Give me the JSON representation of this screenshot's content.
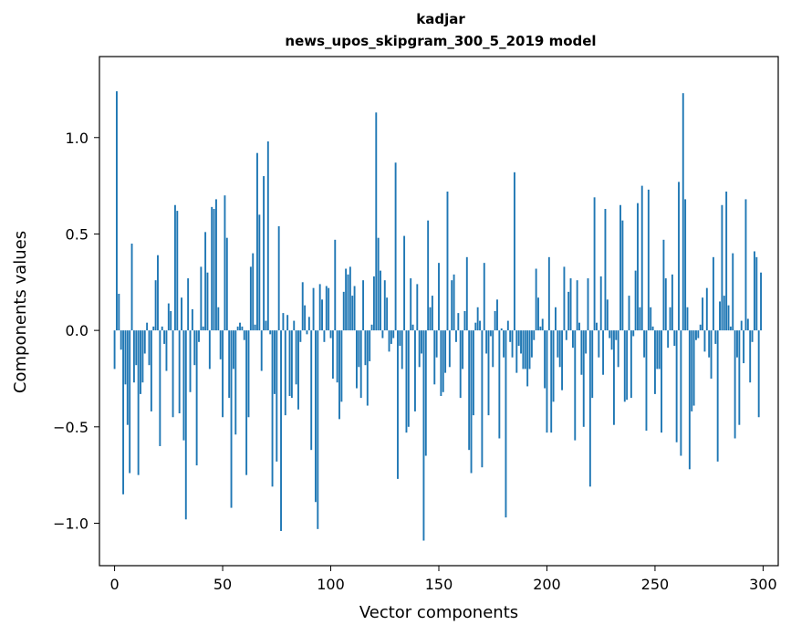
{
  "chart_data": {
    "type": "bar",
    "title": "kadjar",
    "subtitle": "news_upos_skipgram_300_5_2019 model",
    "xlabel": "Vector components",
    "ylabel": "Components values",
    "xlim": [
      -7,
      307
    ],
    "ylim": [
      -1.22,
      1.42
    ],
    "xticks": [
      0,
      50,
      100,
      150,
      200,
      250,
      300
    ],
    "xtick_labels": [
      "0",
      "50",
      "100",
      "150",
      "200",
      "250",
      "300"
    ],
    "yticks": [
      -1.0,
      -0.5,
      0.0,
      0.5,
      1.0
    ],
    "ytick_labels": [
      "−1.0",
      "−0.5",
      "0.0",
      "0.5",
      "1.0"
    ],
    "grid": false,
    "bar_color": "#1f77b4",
    "x_start": 0,
    "values": [
      -0.2,
      1.24,
      0.19,
      -0.1,
      -0.85,
      -0.28,
      -0.49,
      -0.74,
      0.45,
      -0.27,
      -0.18,
      -0.75,
      -0.33,
      -0.27,
      -0.12,
      0.04,
      -0.18,
      -0.42,
      0.02,
      0.26,
      0.39,
      -0.6,
      0.02,
      -0.07,
      -0.21,
      0.14,
      0.1,
      -0.45,
      0.65,
      0.62,
      -0.43,
      0.17,
      -0.57,
      -0.98,
      0.27,
      -0.32,
      0.11,
      -0.18,
      -0.7,
      -0.06,
      0.33,
      0.02,
      0.51,
      0.3,
      -0.2,
      0.64,
      0.63,
      0.68,
      0.12,
      -0.15,
      -0.45,
      0.7,
      0.48,
      -0.35,
      -0.92,
      -0.2,
      -0.54,
      0.02,
      0.04,
      0.02,
      -0.05,
      -0.75,
      -0.45,
      0.33,
      0.4,
      0.03,
      0.92,
      0.6,
      -0.21,
      0.8,
      0.05,
      0.98,
      -0.02,
      -0.81,
      -0.33,
      -0.68,
      0.54,
      -1.04,
      0.09,
      -0.44,
      0.08,
      -0.34,
      -0.35,
      0.05,
      -0.28,
      -0.41,
      -0.06,
      0.25,
      0.13,
      -0.02,
      0.07,
      -0.62,
      0.22,
      -0.89,
      -1.03,
      0.24,
      0.16,
      -0.06,
      0.23,
      0.22,
      -0.04,
      -0.25,
      0.47,
      -0.27,
      -0.46,
      -0.37,
      0.2,
      0.32,
      0.29,
      0.33,
      0.18,
      0.23,
      -0.3,
      -0.19,
      -0.35,
      0.26,
      -0.18,
      -0.39,
      -0.16,
      0.03,
      0.28,
      1.13,
      0.48,
      0.31,
      -0.04,
      0.26,
      0.17,
      -0.11,
      -0.07,
      -0.04,
      0.87,
      -0.77,
      -0.08,
      -0.2,
      0.49,
      -0.53,
      -0.5,
      0.27,
      0.03,
      -0.42,
      0.24,
      -0.19,
      -0.12,
      -1.09,
      -0.65,
      0.57,
      0.12,
      0.18,
      -0.28,
      -0.14,
      0.35,
      -0.34,
      -0.32,
      -0.22,
      0.72,
      -0.19,
      0.26,
      0.29,
      -0.06,
      0.09,
      -0.35,
      -0.2,
      0.1,
      0.38,
      -0.62,
      -0.74,
      -0.44,
      0.04,
      0.12,
      0.05,
      -0.71,
      0.35,
      -0.12,
      -0.44,
      -0.03,
      -0.19,
      0.1,
      0.16,
      -0.56,
      0.01,
      -0.14,
      -0.97,
      0.05,
      -0.06,
      -0.14,
      0.82,
      -0.22,
      -0.08,
      -0.12,
      -0.2,
      -0.2,
      -0.29,
      -0.2,
      -0.14,
      -0.05,
      0.32,
      0.17,
      0.02,
      0.06,
      -0.3,
      -0.53,
      0.38,
      -0.53,
      -0.37,
      0.12,
      -0.14,
      -0.19,
      -0.31,
      0.33,
      -0.05,
      0.2,
      0.27,
      -0.09,
      -0.57,
      0.26,
      0.04,
      -0.23,
      -0.5,
      -0.12,
      0.27,
      -0.81,
      -0.35,
      0.69,
      0.04,
      -0.14,
      0.28,
      -0.23,
      0.63,
      0.16,
      -0.04,
      -0.1,
      -0.49,
      -0.05,
      -0.19,
      0.65,
      0.57,
      -0.37,
      -0.36,
      0.18,
      -0.35,
      -0.03,
      0.31,
      0.66,
      0.12,
      0.75,
      -0.14,
      -0.52,
      0.73,
      0.12,
      0.02,
      -0.33,
      -0.2,
      -0.2,
      -0.53,
      0.47,
      0.27,
      -0.09,
      0.12,
      0.29,
      -0.08,
      -0.58,
      0.77,
      -0.65,
      1.23,
      0.68,
      0.12,
      -0.72,
      -0.42,
      -0.39,
      -0.05,
      -0.04,
      0.03,
      0.17,
      -0.11,
      0.22,
      -0.14,
      -0.25,
      0.38,
      -0.07,
      -0.68,
      0.15,
      0.65,
      0.18,
      0.72,
      0.13,
      0.02,
      0.4,
      -0.56,
      -0.14,
      -0.49,
      0.05,
      -0.17,
      0.68,
      0.06,
      -0.27,
      -0.06,
      0.41,
      0.38,
      -0.45,
      0.3
    ]
  }
}
